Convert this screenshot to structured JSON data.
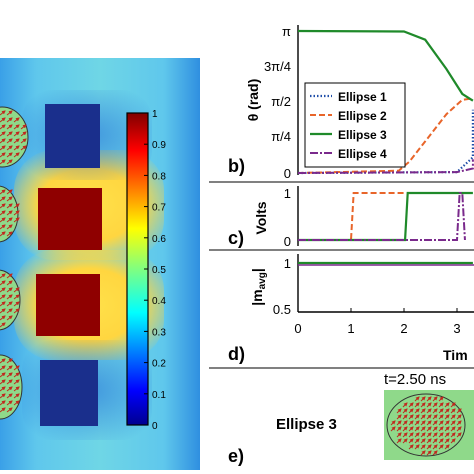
{
  "heatmap": {
    "colorbar_ticks": [
      "1",
      "0.9",
      "0.8",
      "0.7",
      "0.6",
      "0.5",
      "0.4",
      "0.3",
      "0.2",
      "0.1",
      "0"
    ]
  },
  "panel_b": {
    "label": "b)",
    "ylabel": "θ (rad)",
    "yticks": [
      "π",
      "3π/4",
      "π/2",
      "π/4",
      "0"
    ],
    "legend": [
      "Ellipse 1",
      "Ellipse 2",
      "Ellipse 3",
      "Ellipse 4"
    ]
  },
  "panel_c": {
    "label": "c)",
    "ylabel": "Volts",
    "yticks": [
      "1",
      "0"
    ]
  },
  "panel_d": {
    "label": "d)",
    "ylabel": "|m",
    "ylabel_sub": "avg",
    "ylabel_end": "|",
    "yticks": [
      "1",
      "0.5"
    ],
    "xticks": [
      "0",
      "1",
      "2",
      "3"
    ],
    "xlabel": "Tim"
  },
  "panel_e": {
    "label": "e)",
    "title": "t=2.50 ns",
    "name": "Ellipse 3"
  },
  "colors": {
    "ellipse1": "#1f4ea8",
    "ellipse2": "#e8652a",
    "ellipse3": "#1f8a2a",
    "ellipse4": "#7a2a8c",
    "magnet_inset_bg": "#8fd98a",
    "arrow": "#c0281e"
  },
  "chart_data": [
    {
      "type": "line",
      "ylabel": "θ (rad)",
      "ylim": [
        0,
        3.1416
      ],
      "series": [
        {
          "name": "Ellipse 1",
          "x": [
            0,
            3.0,
            3.6,
            4.0
          ],
          "values": [
            0,
            0.02,
            0.35,
            1.4
          ]
        },
        {
          "name": "Ellipse 2",
          "x": [
            0,
            1.9,
            2.1,
            2.4,
            2.8,
            3.1,
            3.4
          ],
          "values": [
            0,
            0.05,
            0.25,
            0.7,
            1.3,
            1.62,
            1.65
          ]
        },
        {
          "name": "Ellipse 3",
          "x": [
            0,
            2.0,
            2.4,
            2.8,
            3.1,
            3.4
          ],
          "values": [
            3.1416,
            3.13,
            2.95,
            2.3,
            1.75,
            1.6
          ]
        },
        {
          "name": "Ellipse 4",
          "x": [
            0,
            3.0,
            3.3,
            3.6
          ],
          "values": [
            0,
            0.02,
            0.1,
            0.3
          ]
        }
      ]
    },
    {
      "type": "line",
      "ylabel": "Volts",
      "ylim": [
        0,
        1
      ],
      "series": [
        {
          "name": "Ellipse 2",
          "x": [
            0,
            1.0,
            1.05,
            2.0,
            2.02
          ],
          "values": [
            0,
            0,
            1,
            1,
            1
          ]
        },
        {
          "name": "Ellipse 3",
          "x": [
            0,
            2.02,
            2.07,
            3.4
          ],
          "values": [
            0,
            0,
            1,
            1
          ]
        },
        {
          "name": "Ellipse 4",
          "x": [
            0,
            3.0,
            3.05,
            3.1,
            3.15
          ],
          "values": [
            0,
            0,
            1,
            1,
            0
          ]
        }
      ]
    },
    {
      "type": "line",
      "ylabel": "|m avg|",
      "xlabel": "Tim",
      "ylim": [
        0.5,
        1
      ],
      "series": [
        {
          "name": "Ellipse 3",
          "x": [
            0,
            3.4
          ],
          "values": [
            1,
            1
          ]
        }
      ]
    }
  ]
}
